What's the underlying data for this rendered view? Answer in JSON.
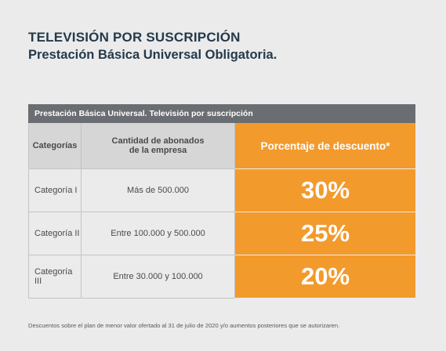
{
  "heading": {
    "title": "TELEVISIÓN POR SUSCRIPCIÓN",
    "subtitle": "Prestación Básica Universal Obligatoria."
  },
  "table": {
    "caption": "Prestación Básica Universal. Televisión por suscripción",
    "columns": [
      "Categorías",
      "Cantidad de abonados\nde la empresa",
      "Porcentaje de descuento*"
    ],
    "rows": [
      {
        "category": "Categoría I",
        "subscribers": "Más de 500.000",
        "discount": "30%"
      },
      {
        "category": "Categoría II",
        "subscribers": "Entre 100.000 y 500.000",
        "discount": "25%"
      },
      {
        "category": "Categoría III",
        "subscribers": "Entre 30.000 y 100.000",
        "discount": "20%"
      }
    ]
  },
  "footnote": "Descuentos sobre el plan de menor valor ofertado al 31 de julio de 2020 y/o aumentos posteriores que se autorizaren.",
  "colors": {
    "accent": "#f39a2c",
    "header_bar": "#6a6d72",
    "title": "#243a4a"
  }
}
